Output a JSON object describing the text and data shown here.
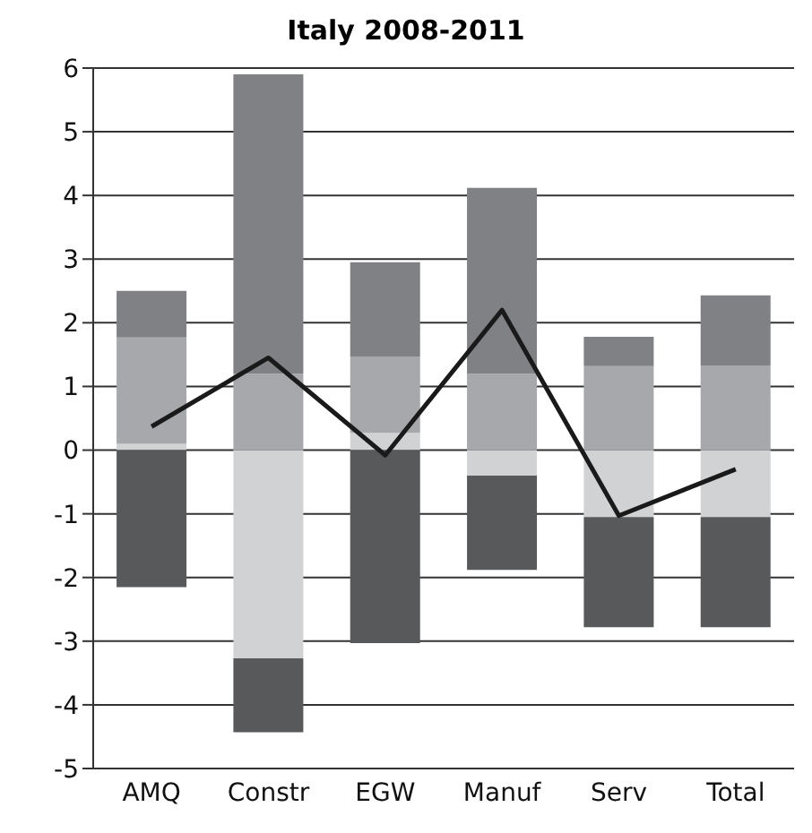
{
  "chart_data": {
    "type": "bar",
    "title": "Italy 2008-2011",
    "stacked": true,
    "categories": [
      "AMQ",
      "Constr",
      "EGW",
      "Manuf",
      "Serv",
      "Total"
    ],
    "series": [
      {
        "color": "#d1d2d4",
        "values": [
          0.1,
          -3.27,
          0.27,
          -0.4,
          -1.05,
          -1.05
        ]
      },
      {
        "color": "#a7a8ab",
        "values": [
          1.67,
          1.2,
          1.2,
          1.2,
          1.32,
          1.33
        ]
      },
      {
        "color": "#808185",
        "values": [
          0.73,
          4.7,
          1.48,
          2.92,
          0.46,
          1.1
        ]
      },
      {
        "color": "#58595b",
        "values": [
          -2.15,
          -1.16,
          -3.03,
          -1.48,
          -1.73,
          -1.73
        ]
      },
      {
        "type": "line",
        "color": "#1a1a1a",
        "values": [
          0.37,
          1.45,
          -0.08,
          2.2,
          -1.03,
          -0.3
        ]
      }
    ],
    "ylim": [
      -5,
      6
    ],
    "yticks": [
      -5,
      -4,
      -3,
      -2,
      -1,
      0,
      1,
      2,
      3,
      4,
      5,
      6
    ],
    "grid": "y",
    "legend": false,
    "marker": "none"
  }
}
